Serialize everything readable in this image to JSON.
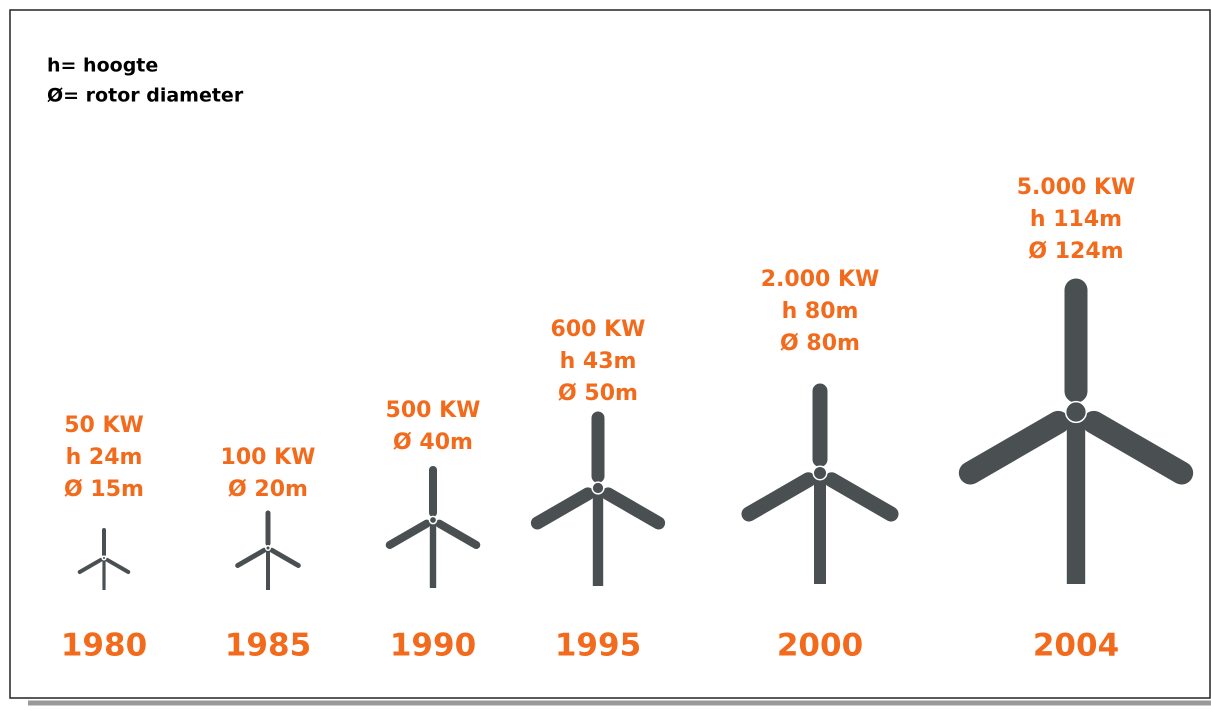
{
  "legend": [
    "h= hoogte",
    "Ø= rotor diameter"
  ],
  "turbines": [
    {
      "lines": [
        "50 KW",
        "h 24m",
        "Ø 15m"
      ],
      "year": "1980"
    },
    {
      "lines": [
        "100 KW",
        "Ø 20m"
      ],
      "year": "1985"
    },
    {
      "lines": [
        "500 KW",
        "Ø 40m"
      ],
      "year": "1990"
    },
    {
      "lines": [
        "600 KW",
        "h 43m",
        "Ø 50m"
      ],
      "year": "1995"
    },
    {
      "lines": [
        "2.000 KW",
        "h 80m",
        "Ø 80m"
      ],
      "year": "2000"
    },
    {
      "lines": [
        "5.000 KW",
        "h 114m",
        "Ø 124m"
      ],
      "year": "2004"
    }
  ]
}
